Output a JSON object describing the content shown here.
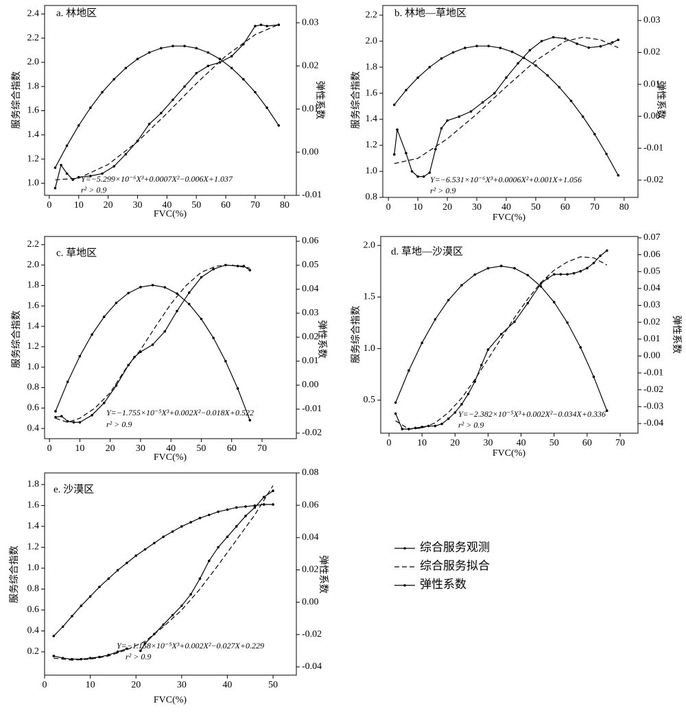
{
  "chart_data": [
    {
      "type": "line",
      "title": "a. 林地区",
      "xlabel": "FVC(%)",
      "ylabel": "服务综合指数",
      "y2label": "弹性系数",
      "annotations": [
        "Y=−5.299×10⁻⁶X³+0.0007X²−0.006X+1.037",
        "r² > 0.9"
      ],
      "xlim": [
        -1.6,
        84
      ],
      "xticks": [
        0,
        10,
        20,
        30,
        40,
        50,
        60,
        70,
        80
      ],
      "ylim": [
        0.9,
        2.47
      ],
      "yticks": [
        {
          "value": 1,
          "label": "1.0"
        },
        1.2,
        1.4,
        1.6,
        1.8,
        {
          "value": 2,
          "label": "2.0"
        },
        2.2,
        2.4
      ],
      "y2lim": [
        -0.01,
        0.034
      ],
      "y2ticks": [
        -0.01,
        {
          "value": 0,
          "label": "0.00"
        },
        0.01,
        0.02,
        0.03
      ],
      "series": [
        {
          "name": "综合服务观测",
          "style": "solid-marker",
          "color": "#000",
          "x": [
            2,
            4,
            6,
            8,
            10,
            14,
            18,
            22,
            26,
            30,
            34,
            38,
            42,
            46,
            50,
            54,
            58,
            62,
            66,
            70,
            72,
            74,
            78
          ],
          "values": [
            0.96,
            1.15,
            1.08,
            1.03,
            1.05,
            1.06,
            1.08,
            1.14,
            1.24,
            1.35,
            1.49,
            1.58,
            1.69,
            1.8,
            1.91,
            1.97,
            2.0,
            2.05,
            2.15,
            2.3,
            2.31,
            2.3,
            2.31
          ]
        },
        {
          "name": "综合服务拟合",
          "style": "dashed",
          "color": "#000",
          "x": [
            2,
            10,
            20,
            30,
            40,
            50,
            60,
            70,
            78
          ],
          "values": [
            1.028,
            1.042,
            1.155,
            1.344,
            1.578,
            1.825,
            2.052,
            2.229,
            2.313
          ]
        },
        {
          "name": "弹性系数",
          "style": "solid-marker",
          "color": "#000",
          "axis": "y2",
          "x": [
            2,
            6,
            10,
            14,
            18,
            22,
            26,
            30,
            34,
            38,
            42,
            46,
            50,
            54,
            58,
            62,
            66,
            70,
            74,
            78
          ],
          "values": [
            -0.0036,
            0.0015,
            0.0062,
            0.0103,
            0.0139,
            0.0169,
            0.0195,
            0.0216,
            0.0231,
            0.0241,
            0.0246,
            0.0246,
            0.0241,
            0.0231,
            0.0216,
            0.0195,
            0.0169,
            0.0139,
            0.0103,
            0.0062
          ]
        }
      ]
    },
    {
      "type": "line",
      "title": "b. 林地—草地区",
      "xlabel": "FVC(%)",
      "ylabel": "服务综合指数",
      "y2label": "弹性系数",
      "annotations": [
        "Y=−6.531×10⁻⁶X³+0.0006X²+0.001X+1.056",
        "r² > 0.9"
      ],
      "xlim": [
        -1.9,
        84.7
      ],
      "xticks": [
        0,
        10,
        20,
        30,
        40,
        50,
        60,
        70,
        80
      ],
      "ylim": [
        0.8,
        2.274
      ],
      "yticks": [
        0.8,
        {
          "value": 1,
          "label": "1.0"
        },
        1.2,
        1.4,
        1.6,
        1.8,
        {
          "value": 2,
          "label": "2.0"
        },
        2.2
      ],
      "y2lim": [
        -0.0254,
        0.0347
      ],
      "y2ticks": [
        -0.02,
        -0.01,
        {
          "value": 0,
          "label": "0.00"
        },
        0.01,
        0.02,
        0.03
      ],
      "series": [
        {
          "name": "综合服务观测",
          "style": "solid-marker",
          "color": "#000",
          "x": [
            2,
            3,
            6,
            8,
            10,
            12,
            14,
            16,
            18,
            20,
            24,
            28,
            32,
            36,
            40,
            44,
            48,
            52,
            56,
            60,
            64,
            68,
            72,
            76,
            78
          ],
          "values": [
            1.13,
            1.32,
            1.14,
            1.0,
            0.96,
            0.96,
            0.99,
            1.17,
            1.33,
            1.39,
            1.42,
            1.46,
            1.53,
            1.6,
            1.72,
            1.83,
            1.93,
            2.0,
            2.03,
            2.02,
            1.98,
            1.95,
            1.96,
            1.99,
            2.01
          ]
        },
        {
          "name": "综合服务拟合",
          "style": "dashed",
          "color": "#000",
          "x": [
            2,
            10,
            20,
            30,
            40,
            50,
            60,
            66,
            72,
            78
          ],
          "values": [
            1.06,
            1.1,
            1.25,
            1.44,
            1.65,
            1.85,
            2.0,
            2.03,
            2.01,
            1.95
          ]
        },
        {
          "name": "弹性系数",
          "style": "solid-marker",
          "color": "#000",
          "axis": "y2",
          "x": [
            2,
            6,
            10,
            14,
            18,
            22,
            26,
            30,
            34,
            38,
            42,
            46,
            50,
            54,
            58,
            62,
            66,
            70,
            74,
            78
          ],
          "values": [
            0.0036,
            0.0082,
            0.0121,
            0.0154,
            0.0181,
            0.02,
            0.0214,
            0.022,
            0.022,
            0.0214,
            0.0202,
            0.0183,
            0.0159,
            0.0128,
            0.0091,
            0.0048,
            -0.0001,
            -0.0056,
            -0.0118,
            -0.0185
          ]
        }
      ]
    },
    {
      "type": "line",
      "title": "c. 草地区",
      "xlabel": "FVC(%)",
      "ylabel": "服务综合指数",
      "y2label": "弹性系数",
      "annotations": [
        "Y=−1.755×10⁻⁵X³+0.002X²−0.018X+0.522",
        "r² > 0.9"
      ],
      "xlim": [
        -1.6,
        81.3
      ],
      "xticks": [
        0,
        10,
        20,
        30,
        40,
        50,
        60,
        70
      ],
      "ylim": [
        0.3,
        2.28
      ],
      "yticks": [
        0.4,
        0.6,
        0.8,
        {
          "value": 1,
          "label": "1.0"
        },
        1.2,
        1.4,
        1.6,
        1.8,
        {
          "value": 2,
          "label": "2.0"
        },
        2.2
      ],
      "y2lim": [
        -0.0223,
        0.062
      ],
      "y2ticks": [
        -0.02,
        -0.01,
        {
          "value": 0,
          "label": "0.00"
        },
        0.01,
        0.02,
        0.03,
        0.04,
        0.05,
        0.06
      ],
      "series": [
        {
          "name": "综合服务观测",
          "style": "solid-marker",
          "color": "#000",
          "x": [
            2,
            4,
            6,
            8,
            10,
            14,
            18,
            22,
            26,
            28,
            30,
            34,
            38,
            42,
            46,
            50,
            54,
            58,
            62,
            64,
            66
          ],
          "values": [
            0.51,
            0.52,
            0.47,
            0.46,
            0.46,
            0.53,
            0.65,
            0.82,
            1.02,
            1.1,
            1.15,
            1.22,
            1.35,
            1.55,
            1.73,
            1.88,
            1.96,
            2.0,
            1.99,
            1.99,
            1.95
          ]
        },
        {
          "name": "综合服务拟合",
          "style": "dashed",
          "color": "#000",
          "x": [
            2,
            6,
            10,
            15,
            20,
            25,
            30,
            35,
            40,
            45,
            50,
            55,
            60,
            66
          ],
          "values": [
            0.5,
            0.46,
            0.5,
            0.6,
            0.75,
            0.98,
            1.17,
            1.4,
            1.62,
            1.8,
            1.93,
            1.99,
            2.0,
            1.97
          ]
        },
        {
          "name": "弹性系数",
          "style": "solid-marker",
          "color": "#000",
          "axis": "y2",
          "x": [
            2,
            6,
            10,
            14,
            18,
            22,
            26,
            30,
            34,
            38,
            42,
            46,
            50,
            54,
            58,
            62,
            66
          ],
          "values": [
            -0.0109,
            0.0014,
            0.0121,
            0.0211,
            0.0285,
            0.0343,
            0.0384,
            0.0409,
            0.0417,
            0.0408,
            0.0382,
            0.0338,
            0.0276,
            0.0197,
            0.01,
            -0.0014,
            -0.0146
          ]
        }
      ]
    },
    {
      "type": "line",
      "title": "d. 草地—沙漠区",
      "xlabel": "FVC(%)",
      "ylabel": "服务综合指数",
      "y2label": "弹性系数",
      "annotations": [
        "Y=−2.382×10⁻⁵X³+0.002X²−0.034X+0.336",
        "r² > 0.9"
      ],
      "xlim": [
        -2.5,
        75.4
      ],
      "xticks": [
        0,
        10,
        20,
        30,
        40,
        50,
        60,
        70
      ],
      "ylim": [
        0.18,
        2.087
      ],
      "yticks": [
        0.5,
        {
          "value": 1,
          "label": "1.0"
        },
        1.5,
        {
          "value": 2,
          "label": "2.0"
        }
      ],
      "y2lim": [
        -0.0457,
        0.0708
      ],
      "y2ticks": [
        -0.04,
        -0.03,
        -0.02,
        -0.01,
        {
          "value": 0,
          "label": "0.00"
        },
        0.01,
        0.02,
        0.03,
        0.04,
        0.05,
        0.06,
        0.07
      ],
      "series": [
        {
          "name": "综合服务观测",
          "style": "solid-marker",
          "color": "#000",
          "x": [
            2,
            4,
            6,
            8,
            10,
            12,
            14,
            16,
            18,
            20,
            22,
            24,
            26,
            28,
            30,
            34,
            38,
            42,
            46,
            48,
            50,
            52,
            54,
            56,
            58,
            60,
            62,
            64,
            66
          ],
          "values": [
            0.37,
            0.22,
            0.22,
            0.23,
            0.24,
            0.25,
            0.25,
            0.27,
            0.32,
            0.38,
            0.46,
            0.56,
            0.68,
            0.84,
            0.99,
            1.14,
            1.26,
            1.44,
            1.63,
            1.68,
            1.72,
            1.72,
            1.72,
            1.73,
            1.75,
            1.78,
            1.83,
            1.9,
            1.95
          ]
        },
        {
          "name": "综合服务拟合",
          "style": "dashed",
          "color": "#000",
          "x": [
            2,
            6,
            10,
            14,
            18,
            22,
            26,
            30,
            34,
            38,
            42,
            46,
            50,
            54,
            58,
            62,
            66
          ],
          "values": [
            0.3,
            0.22,
            0.23,
            0.28,
            0.38,
            0.52,
            0.7,
            0.9,
            1.1,
            1.3,
            1.48,
            1.64,
            1.76,
            1.84,
            1.89,
            1.88,
            1.81
          ]
        },
        {
          "name": "弹性系数",
          "style": "solid-marker",
          "color": "#000",
          "axis": "y2",
          "x": [
            2,
            6,
            10,
            14,
            18,
            22,
            26,
            30,
            34,
            38,
            42,
            46,
            50,
            54,
            58,
            62,
            66
          ],
          "values": [
            -0.0276,
            -0.0086,
            0.0078,
            0.0217,
            0.0331,
            0.0419,
            0.0482,
            0.052,
            0.0533,
            0.052,
            0.0479,
            0.0412,
            0.0319,
            0.0198,
            0.0051,
            -0.0123,
            -0.0324
          ]
        }
      ]
    },
    {
      "type": "line",
      "title": "e. 沙漠区",
      "xlabel": "FVC(%)",
      "ylabel": "服务综合指数",
      "y2label": "弹性系数",
      "annotations": [
        "Y=−1.158×10⁻⁵X³+0.002X²−0.027X+0.229",
        "r² > 0.9"
      ],
      "xlim": [
        0,
        55.1
      ],
      "xticks": [
        0,
        10,
        20,
        30,
        40,
        50
      ],
      "ylim": [
        -0.023,
        1.911
      ],
      "yticks": [
        0.2,
        0.4,
        0.6,
        0.8,
        {
          "value": 1,
          "label": "1.0"
        },
        1.2,
        1.4,
        1.6,
        1.8
      ],
      "y2lim": [
        -0.0451,
        0.08
      ],
      "y2ticks": [
        -0.04,
        -0.02,
        {
          "value": 0,
          "label": "0.00"
        },
        0.02,
        0.04,
        0.06,
        0.08
      ],
      "series": [
        {
          "name": "综合服务观测",
          "style": "solid-marker",
          "color": "#000",
          "x": [
            2,
            4,
            6,
            8,
            10,
            12,
            14,
            16,
            18,
            20,
            21,
            22,
            24,
            26,
            28,
            30,
            32,
            34,
            36,
            38,
            40,
            42,
            44,
            46,
            48,
            50
          ],
          "values": [
            0.16,
            0.14,
            0.13,
            0.13,
            0.14,
            0.15,
            0.17,
            0.2,
            0.23,
            null,
            0.21,
            0.28,
            0.37,
            0.46,
            0.55,
            0.64,
            0.75,
            0.9,
            1.07,
            1.2,
            1.3,
            1.4,
            1.5,
            1.58,
            1.68,
            1.74
          ]
        },
        {
          "name": "综合服务拟合",
          "style": "dashed",
          "color": "#000",
          "x": [
            2,
            6,
            10,
            14,
            18,
            22,
            26,
            30,
            34,
            38,
            42,
            46,
            50
          ],
          "values": [
            0.14,
            0.12,
            0.13,
            0.16,
            0.22,
            0.3,
            0.44,
            0.6,
            0.8,
            1.03,
            1.27,
            1.51,
            1.79
          ]
        },
        {
          "name": "弹性系数",
          "style": "solid-marker",
          "color": "#000",
          "axis": "y2",
          "x": [
            2,
            4,
            6,
            8,
            10,
            12,
            14,
            16,
            18,
            20,
            22,
            24,
            26,
            28,
            30,
            32,
            34,
            36,
            38,
            40,
            42,
            44,
            46,
            48,
            50
          ],
          "values": [
            -0.0209,
            -0.0151,
            -0.0086,
            -0.0022,
            0.0036,
            0.0095,
            0.0146,
            0.0198,
            0.0243,
            0.0288,
            0.0327,
            0.0366,
            0.0405,
            0.0437,
            0.0469,
            0.0495,
            0.0521,
            0.054,
            0.056,
            0.0573,
            0.0586,
            0.0592,
            0.0598,
            0.0605,
            0.0605
          ]
        }
      ]
    }
  ]
}
